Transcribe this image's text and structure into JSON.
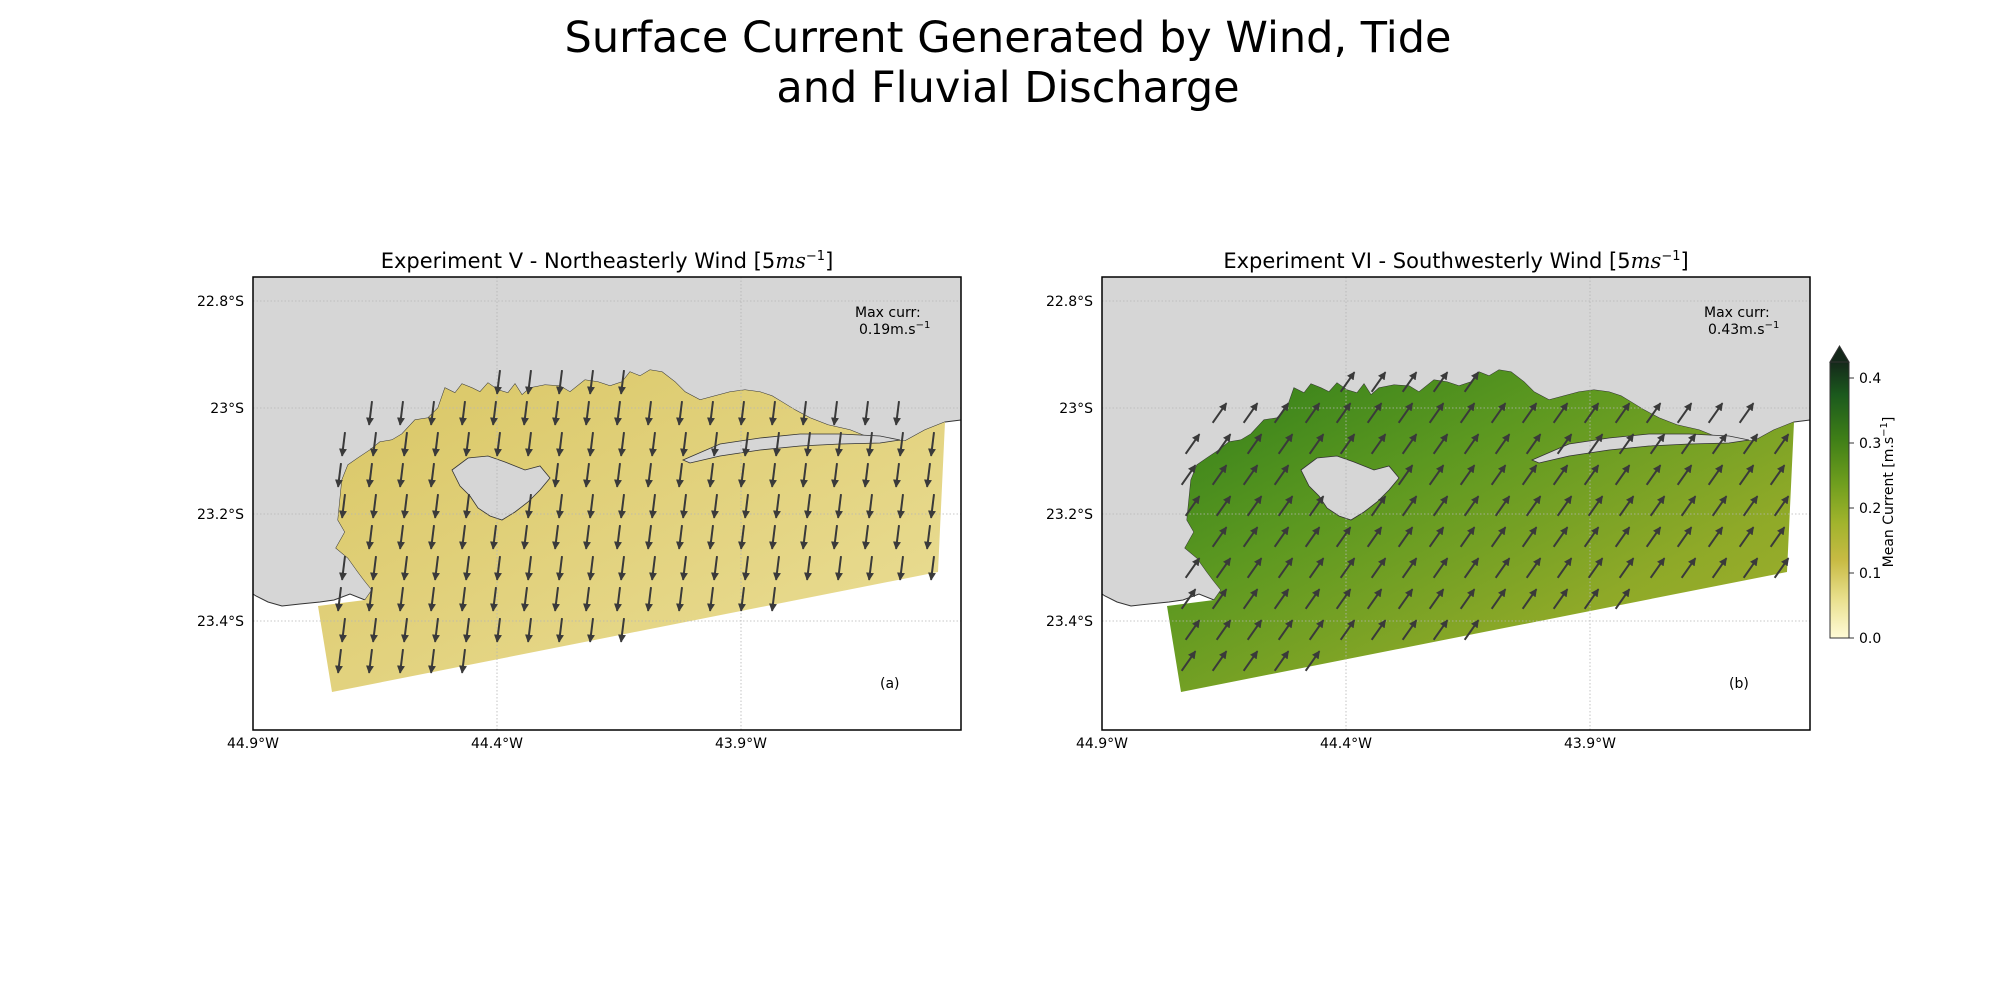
{
  "figure": {
    "title_line1": "Surface Current Generated by Wind, Tide",
    "title_line2": "and Fluvial Discharge"
  },
  "panels": [
    {
      "title": "Experiment V - Northeasterly Wind [5",
      "title_unit": "ms",
      "title_exp": "−1",
      "title_close": "]",
      "max_label": "Max curr:",
      "max_value": "0.19m.s",
      "max_exp": "−1",
      "letter": "(a)",
      "arrow_dir_deg": 97,
      "fill_color": "#e2d27e"
    },
    {
      "title": "Experiment VI - Southwesterly Wind [5",
      "title_unit": "ms",
      "title_exp": "−1",
      "title_close": "]",
      "max_label": "Max curr:",
      "max_value": "0.43m.s",
      "max_exp": "−1",
      "letter": "(b)",
      "arrow_dir_deg": -55,
      "fill_color": "#8ea928"
    }
  ],
  "axes": {
    "lat_ticks": [
      "22.8°S",
      "23°S",
      "23.2°S",
      "23.4°S"
    ],
    "lon_ticks": [
      "44.9°W",
      "44.4°W",
      "43.9°W"
    ],
    "land_color": "#d6d6d6",
    "grid": true
  },
  "colorbar": {
    "label": "Mean Current [m.s",
    "label_exp": "−1",
    "label_close": "]",
    "ticks": [
      "0.0",
      "0.1",
      "0.2",
      "0.3",
      "0.4"
    ],
    "extend": "max",
    "colors": [
      "#fffbd7",
      "#e9e08e",
      "#c8bb44",
      "#a0b32c",
      "#6f9e1e",
      "#3f7f17",
      "#1b5a1d",
      "#14281a"
    ]
  }
}
